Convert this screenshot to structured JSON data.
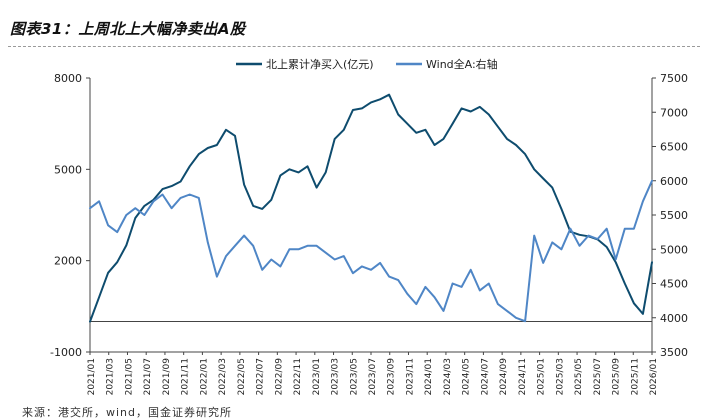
{
  "header": {
    "title": "图表31：上周北上大幅净卖出A股"
  },
  "footer": {
    "source": "来源：港交所，wind，国金证券研究所"
  },
  "colors": {
    "northbound": "#0e4c6e",
    "wind_a": "#4f86c6",
    "axis": "#444444"
  },
  "chart_data": {
    "type": "line",
    "title": "图表31：上周北上大幅净卖出A股",
    "legend_position": "top",
    "grid": false,
    "x_ticks": [
      "2021/01",
      "2021/03",
      "2021/05",
      "2021/07",
      "2021/09",
      "2021/11",
      "2022/01",
      "2022/03",
      "2022/05",
      "2022/07",
      "2022/09",
      "2022/11",
      "2023/01",
      "2023/03",
      "2023/05",
      "2023/07",
      "2023/09",
      "2023/11",
      "2024/01",
      "2024/03",
      "2024/05",
      "2024/07",
      "2024/09",
      "2024/11",
      "2025/01",
      "2025/03",
      "2025/05",
      "2025/07",
      "2025/09",
      "2025/11",
      "2026/01"
    ],
    "left_axis": {
      "ylim": [
        -1000,
        8000
      ],
      "ticks": [
        -1000,
        2000,
        5000,
        8000
      ]
    },
    "right_axis": {
      "ylim": [
        3500,
        7500
      ],
      "ticks": [
        3500,
        4000,
        4500,
        5000,
        5500,
        6000,
        6500,
        7000,
        7500
      ]
    },
    "series": [
      {
        "name": "北上累计净买入(亿元)",
        "axis": "left",
        "x": [
          0,
          1,
          2,
          3,
          4,
          5,
          6,
          7,
          8,
          9,
          10,
          11,
          12,
          13,
          14,
          15,
          16,
          17,
          18,
          19,
          20,
          21,
          22,
          23,
          24,
          25,
          26,
          27,
          28,
          29,
          30,
          31,
          32,
          33,
          34,
          35,
          36,
          37,
          38,
          39,
          40,
          41,
          42,
          43,
          44,
          45,
          46,
          47,
          48,
          49,
          50,
          51,
          52,
          53,
          54,
          55,
          56,
          57,
          58,
          59,
          60,
          61,
          62
        ],
        "values": [
          0,
          800,
          1600,
          1950,
          2500,
          3400,
          3800,
          4000,
          4350,
          4450,
          4600,
          5100,
          5500,
          5700,
          5800,
          6300,
          6100,
          4500,
          3800,
          3700,
          4000,
          4800,
          5000,
          4900,
          5100,
          4400,
          4900,
          6000,
          6300,
          6950,
          7000,
          7200,
          7300,
          7450,
          6800,
          6500,
          6200,
          6300,
          5800,
          6000,
          6500,
          7000,
          6900,
          7050,
          6800,
          6400,
          6000,
          5800,
          5500,
          5000,
          4700,
          4400,
          3700,
          2950,
          2850,
          2800,
          2700,
          2450,
          1950,
          1250,
          600,
          250,
          1950
        ]
      },
      {
        "name": "Wind全A:右轴",
        "axis": "right",
        "x": [
          0,
          1,
          2,
          3,
          4,
          5,
          6,
          7,
          8,
          9,
          10,
          11,
          12,
          13,
          14,
          15,
          16,
          17,
          18,
          19,
          20,
          21,
          22,
          23,
          24,
          25,
          26,
          27,
          28,
          29,
          30,
          31,
          32,
          33,
          34,
          35,
          36,
          37,
          38,
          39,
          40,
          41,
          42,
          43,
          44,
          45,
          46,
          47,
          48,
          49,
          50,
          51,
          52,
          53,
          54,
          55,
          56,
          57,
          58,
          59,
          60,
          61,
          62
        ],
        "values": [
          5600,
          5700,
          5350,
          5250,
          5500,
          5600,
          5500,
          5700,
          5800,
          5600,
          5750,
          5800,
          5750,
          5100,
          4600,
          4900,
          5050,
          5200,
          5050,
          4700,
          4850,
          4750,
          5000,
          5000,
          5050,
          5050,
          4950,
          4850,
          4900,
          4650,
          4750,
          4700,
          4800,
          4600,
          4550,
          4350,
          4200,
          4450,
          4300,
          4100,
          4500,
          4450,
          4700,
          4400,
          4500,
          4200,
          4100,
          4000,
          3950,
          5200,
          4800,
          5100,
          5000,
          5300,
          5050,
          5200,
          5150,
          5300,
          4850,
          5300,
          5300,
          5700,
          6000
        ]
      }
    ],
    "x_index_note": "x values are positions on the monthly tick axis, where 0 = 2021/01 and each step = one month"
  }
}
